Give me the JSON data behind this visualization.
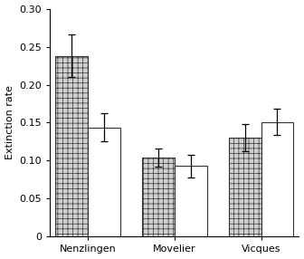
{
  "sites": [
    "Nenzlingen",
    "Movelier",
    "Vicques"
  ],
  "fragment_values": [
    0.238,
    0.104,
    0.13
  ],
  "control_values": [
    0.144,
    0.093,
    0.151
  ],
  "fragment_errors": [
    0.028,
    0.012,
    0.018
  ],
  "control_errors": [
    0.018,
    0.015,
    0.017
  ],
  "ylabel": "Extinction rate",
  "ylim": [
    0,
    0.3
  ],
  "yticks": [
    0,
    0.05,
    0.1,
    0.15,
    0.2,
    0.25,
    0.3
  ],
  "ytick_labels": [
    "0",
    "0.05",
    "0.10",
    "0.15",
    "0.20",
    "0.25",
    "0.30"
  ],
  "bar_width": 0.3,
  "group_positions": [
    0.35,
    1.15,
    1.95
  ],
  "fragment_facecolor": "#d0d0d0",
  "fragment_edgecolor": "#333333",
  "control_facecolor": "#ffffff",
  "control_edgecolor": "#333333",
  "hatch_pattern": "+++",
  "background_color": "#ffffff",
  "capsize": 3,
  "axis_fontsize": 8,
  "tick_fontsize": 8,
  "label_fontsize": 8
}
